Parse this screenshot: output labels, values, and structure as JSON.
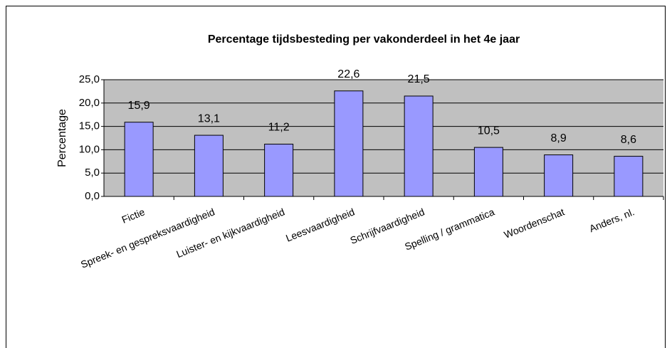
{
  "chart_data": {
    "type": "bar",
    "title": "Percentage tijdsbesteding per vakonderdeel in het 4e jaar",
    "y_label": "Percentage",
    "categories": [
      "Fictie",
      "Spreek- en gespreksvaardigheid",
      "Luister- en kijkvaardigheid",
      "Leesvaardigheid",
      "Schrijfvaardigheid",
      "Spelling / grammatica",
      "Woordenschat",
      "Anders, nl."
    ],
    "values": [
      15.9,
      13.1,
      11.2,
      22.6,
      21.5,
      10.5,
      8.9,
      8.6
    ],
    "value_labels": [
      "15,9",
      "13,1",
      "11,2",
      "22,6",
      "21,5",
      "10,5",
      "8,9",
      "8,6"
    ],
    "color": "#9999ff",
    "ylim": [
      0,
      25
    ],
    "yticks": [
      {
        "value": 0,
        "label": "0,0"
      },
      {
        "value": 5,
        "label": "5,0"
      },
      {
        "value": 10,
        "label": "10,0"
      },
      {
        "value": 15,
        "label": "15,0"
      },
      {
        "value": 20,
        "label": "20,0"
      },
      {
        "value": 25,
        "label": "25,0"
      }
    ],
    "grid": true
  }
}
